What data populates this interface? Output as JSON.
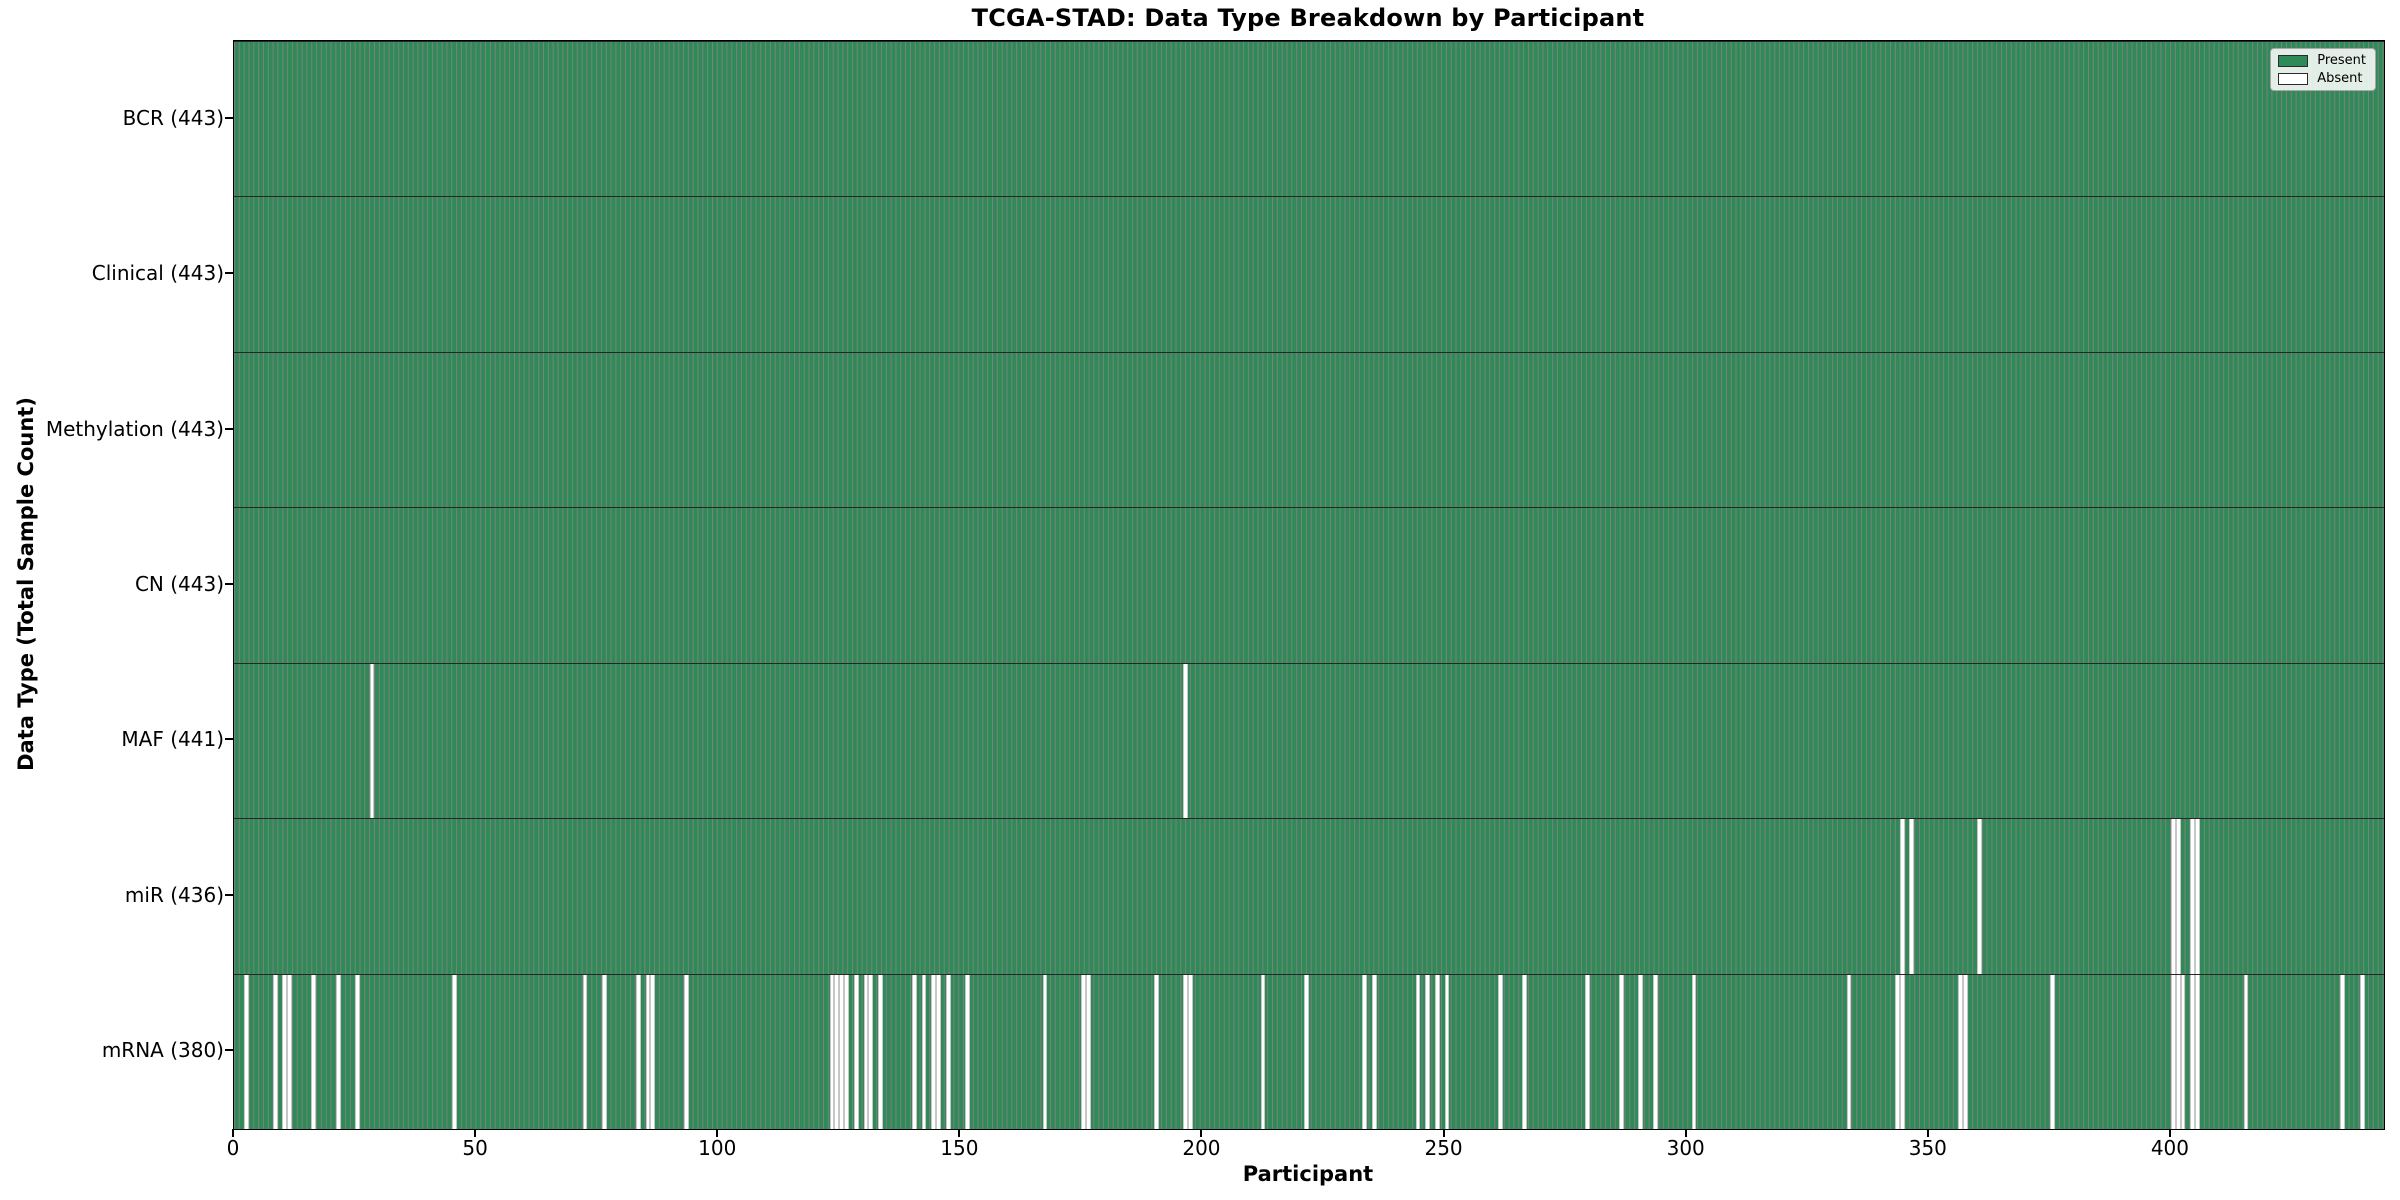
{
  "chart_data": {
    "type": "heatmap",
    "title": "TCGA-STAD: Data Type Breakdown by Participant",
    "xlabel": "Participant",
    "ylabel": "Data Type (Total Sample Count)",
    "x_ticks": [
      0,
      50,
      100,
      150,
      200,
      250,
      300,
      350,
      400
    ],
    "x_range": [
      0,
      443
    ],
    "n_participants": 443,
    "grid": false,
    "present_color": "#2E8B57",
    "absent_color": "#FFFFFF",
    "legend": {
      "position": "upper right",
      "items": [
        {
          "label": "Present",
          "color": "#2E8B57"
        },
        {
          "label": "Absent",
          "color": "#FFFFFF"
        }
      ]
    },
    "rows": [
      {
        "name": "BCR",
        "label": "BCR (443)",
        "total": 443,
        "absent": []
      },
      {
        "name": "Clinical",
        "label": "Clinical (443)",
        "total": 443,
        "absent": []
      },
      {
        "name": "Methylation",
        "label": "Methylation (443)",
        "total": 443,
        "absent": []
      },
      {
        "name": "CN",
        "label": "CN (443)",
        "total": 443,
        "absent": []
      },
      {
        "name": "MAF",
        "label": "MAF (441)",
        "total": 441,
        "absent": [
          28,
          196
        ]
      },
      {
        "name": "miR",
        "label": "miR (436)",
        "total": 436,
        "absent": [
          344,
          346,
          360,
          400,
          401,
          404,
          405
        ]
      },
      {
        "name": "mRNA",
        "label": "mRNA (380)",
        "total": 380,
        "absent": [
          2,
          8,
          10,
          11,
          16,
          21,
          25,
          45,
          72,
          76,
          83,
          85,
          86,
          93,
          123,
          124,
          125,
          126,
          128,
          130,
          131,
          133,
          140,
          142,
          144,
          145,
          147,
          151,
          167,
          175,
          176,
          190,
          196,
          197,
          212,
          221,
          233,
          235,
          244,
          246,
          248,
          250,
          261,
          266,
          279,
          286,
          290,
          293,
          301,
          333,
          343,
          344,
          356,
          357,
          375,
          400,
          401,
          402,
          404,
          405,
          415,
          435,
          439
        ]
      }
    ]
  }
}
